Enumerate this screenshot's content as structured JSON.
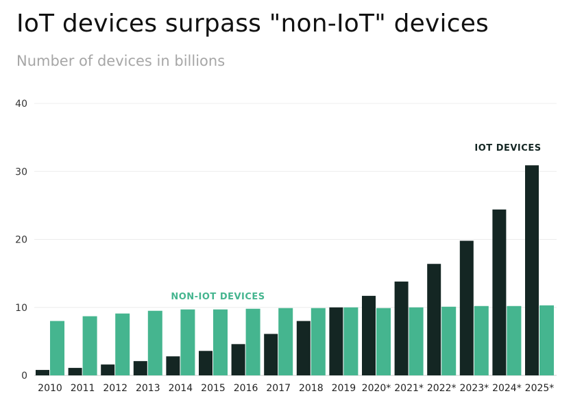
{
  "chart_data": {
    "type": "bar",
    "title": "IoT devices surpass \"non-IoT\" devices",
    "subtitle": "Number of devices in billions",
    "categories": [
      "2010",
      "2011",
      "2012",
      "2013",
      "2014",
      "2015",
      "2016",
      "2017",
      "2018",
      "2019",
      "2020*",
      "2021*",
      "2022*",
      "2023*",
      "2024*",
      "2025*"
    ],
    "series": [
      {
        "name": "IOT DEVICES",
        "color": "#142623",
        "values": [
          0.8,
          1.1,
          1.6,
          2.1,
          2.8,
          3.6,
          4.6,
          6.1,
          8.0,
          10.0,
          11.7,
          13.8,
          16.4,
          19.8,
          24.4,
          30.9
        ]
      },
      {
        "name": "NON-IOT DEVICES",
        "color": "#45b58f",
        "values": [
          8.0,
          8.7,
          9.1,
          9.5,
          9.7,
          9.7,
          9.8,
          9.9,
          9.9,
          10.0,
          9.9,
          10.0,
          10.1,
          10.2,
          10.2,
          10.3
        ]
      }
    ],
    "yticks": [
      0,
      10,
      20,
      30,
      40
    ],
    "ylim": [
      0,
      40
    ],
    "xlabel": "",
    "ylabel": "",
    "grid": true
  }
}
